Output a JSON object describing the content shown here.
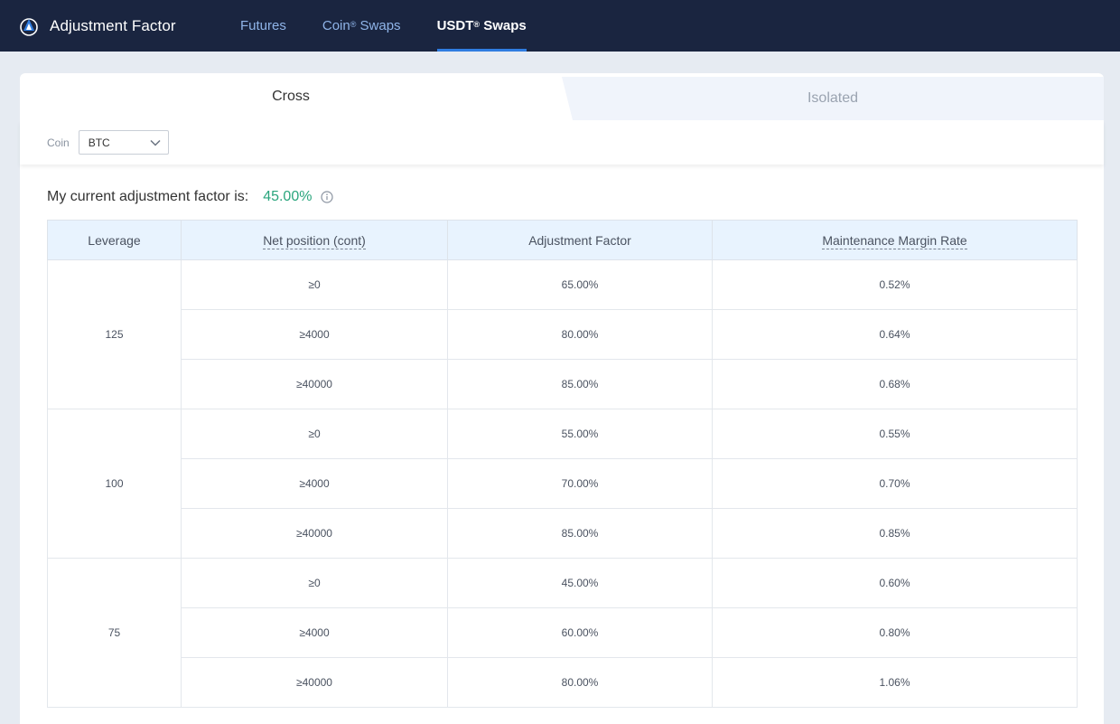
{
  "header": {
    "title": "Adjustment Factor",
    "nav": [
      {
        "label": "Futures",
        "sup": ""
      },
      {
        "label": "Coin",
        "sup": "®",
        "suffix": " Swaps"
      },
      {
        "label": "USDT",
        "sup": "®",
        "suffix": " Swaps"
      }
    ],
    "active_nav": 2
  },
  "tabs": {
    "cross": "Cross",
    "isolated": "Isolated"
  },
  "filter": {
    "coin_label": "Coin",
    "coin_value": "BTC"
  },
  "current": {
    "label": "My current adjustment factor is:",
    "value": "45.00%"
  },
  "table": {
    "headers": [
      "Leverage",
      "Net position (cont)",
      "Adjustment Factor",
      "Maintenance Margin Rate"
    ],
    "groups": [
      {
        "leverage": "125",
        "rows": [
          {
            "net": "≥0",
            "factor": "65.00%",
            "mmr": "0.52%"
          },
          {
            "net": "≥4000",
            "factor": "80.00%",
            "mmr": "0.64%"
          },
          {
            "net": "≥40000",
            "factor": "85.00%",
            "mmr": "0.68%"
          }
        ]
      },
      {
        "leverage": "100",
        "rows": [
          {
            "net": "≥0",
            "factor": "55.00%",
            "mmr": "0.55%"
          },
          {
            "net": "≥4000",
            "factor": "70.00%",
            "mmr": "0.70%"
          },
          {
            "net": "≥40000",
            "factor": "85.00%",
            "mmr": "0.85%"
          }
        ]
      },
      {
        "leverage": "75",
        "rows": [
          {
            "net": "≥0",
            "factor": "45.00%",
            "mmr": "0.60%"
          },
          {
            "net": "≥4000",
            "factor": "60.00%",
            "mmr": "0.80%"
          },
          {
            "net": "≥40000",
            "factor": "80.00%",
            "mmr": "1.06%"
          }
        ]
      }
    ]
  },
  "colors": {
    "topbar": "#1a2540",
    "accent": "#2f7de1",
    "positive": "#2aa57d"
  }
}
